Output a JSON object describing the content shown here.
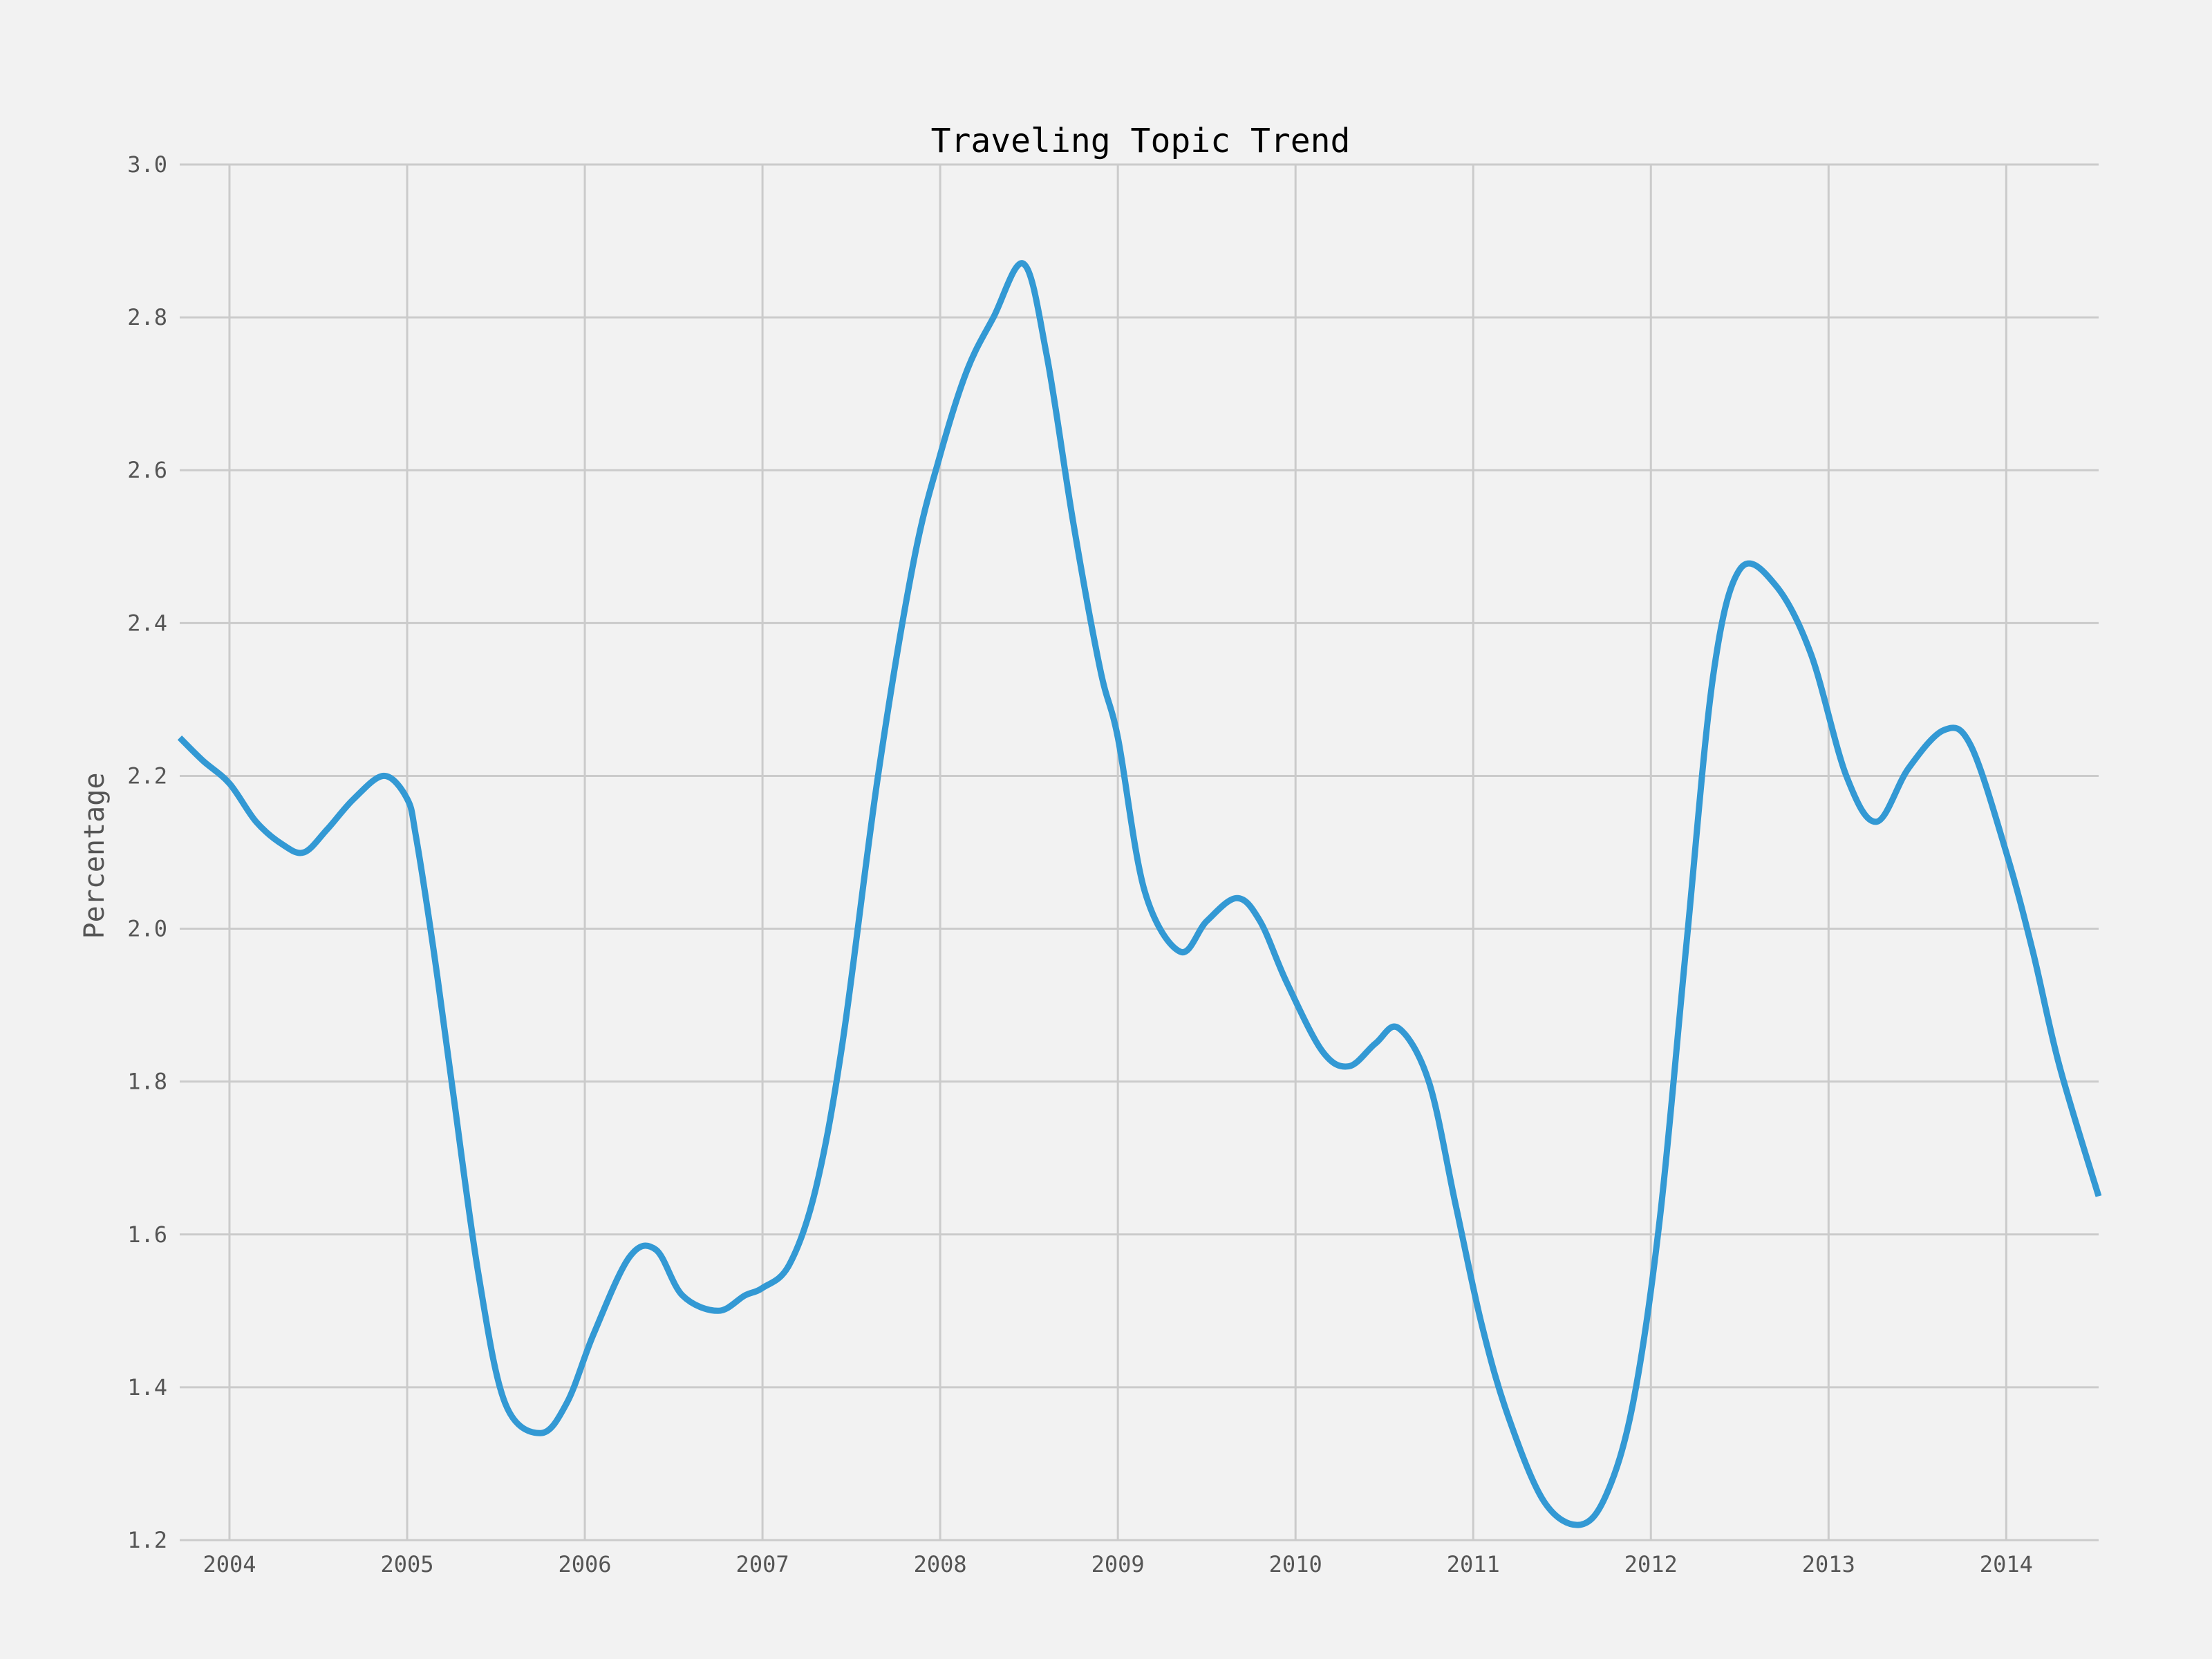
{
  "chart_data": {
    "type": "line",
    "title": "Traveling Topic Trend",
    "xlabel": "",
    "ylabel": "Percentage",
    "xlim": [
      2003.72,
      2014.52
    ],
    "ylim": [
      1.2,
      3.0
    ],
    "grid": true,
    "legend": "none",
    "x_ticks": [
      2004,
      2005,
      2006,
      2007,
      2008,
      2009,
      2010,
      2011,
      2012,
      2013,
      2014
    ],
    "x_tick_labels": [
      "2004",
      "2005",
      "2006",
      "2007",
      "2008",
      "2009",
      "2010",
      "2011",
      "2012",
      "2013",
      "2014"
    ],
    "y_ticks": [
      1.2,
      1.4,
      1.6,
      1.8,
      2.0,
      2.2,
      2.4,
      2.6,
      2.8,
      3.0
    ],
    "y_tick_labels": [
      "1.2",
      "1.4",
      "1.6",
      "1.8",
      "2.0",
      "2.2",
      "2.4",
      "2.6",
      "2.8",
      "3.0"
    ],
    "colors": {
      "line": "#3399d4",
      "background": "#f2f2f2",
      "grid": "#cbcbcb"
    },
    "series": [
      {
        "x": [
          2003.72,
          2003.85,
          2004.0,
          2004.15,
          2004.3,
          2004.42,
          2004.55,
          2004.7,
          2004.87,
          2005.0,
          2005.05,
          2005.15,
          2005.25,
          2005.4,
          2005.55,
          2005.75,
          2005.9,
          2006.05,
          2006.25,
          2006.4,
          2006.55,
          2006.75,
          2006.9,
          2007.0,
          2007.15,
          2007.3,
          2007.45,
          2007.65,
          2007.85,
          2008.0,
          2008.15,
          2008.3,
          2008.47,
          2008.6,
          2008.75,
          2008.9,
          2009.0,
          2009.15,
          2009.35,
          2009.5,
          2009.67,
          2009.8,
          2009.95,
          2010.15,
          2010.3,
          2010.45,
          2010.58,
          2010.75,
          2010.9,
          2011.05,
          2011.2,
          2011.4,
          2011.6,
          2011.75,
          2011.9,
          2012.05,
          2012.2,
          2012.35,
          2012.5,
          2012.7,
          2012.9,
          2013.1,
          2013.27,
          2013.45,
          2013.65,
          2013.8,
          2014.0,
          2014.15,
          2014.3,
          2014.52
        ],
        "y": [
          2.25,
          2.22,
          2.19,
          2.14,
          2.11,
          2.1,
          2.13,
          2.17,
          2.2,
          2.17,
          2.12,
          1.97,
          1.8,
          1.55,
          1.38,
          1.34,
          1.38,
          1.47,
          1.57,
          1.58,
          1.52,
          1.5,
          1.52,
          1.53,
          1.56,
          1.66,
          1.85,
          2.2,
          2.48,
          2.62,
          2.73,
          2.8,
          2.87,
          2.75,
          2.53,
          2.34,
          2.25,
          2.05,
          1.97,
          2.01,
          2.04,
          2.01,
          1.93,
          1.84,
          1.82,
          1.85,
          1.87,
          1.8,
          1.64,
          1.48,
          1.36,
          1.25,
          1.22,
          1.26,
          1.38,
          1.62,
          1.98,
          2.33,
          2.47,
          2.45,
          2.36,
          2.2,
          2.14,
          2.21,
          2.26,
          2.24,
          2.1,
          1.97,
          1.82,
          1.65
        ]
      }
    ]
  }
}
